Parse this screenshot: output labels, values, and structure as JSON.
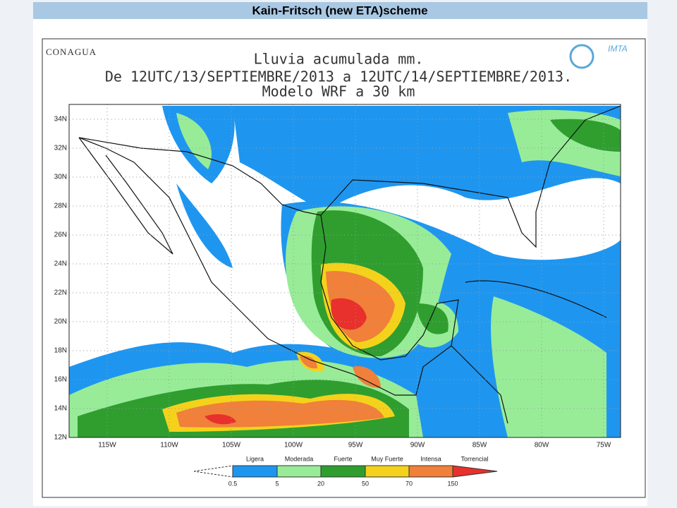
{
  "header": {
    "title": "Kain-Fritsch (new ETA)scheme"
  },
  "logos": {
    "left": "CONAGUA",
    "right": "IMTA"
  },
  "map": {
    "title": [
      "Lluvia acumulada mm.",
      "De 12UTC/13/SEPTIEMBRE/2013 a 12UTC/14/SEPTIEMBRE/2013.",
      "Modelo WRF a 30 km"
    ],
    "lat_labels": [
      "34N",
      "32N",
      "30N",
      "28N",
      "26N",
      "24N",
      "22N",
      "20N",
      "18N",
      "16N",
      "14N",
      "12N"
    ],
    "lon_labels": [
      "115W",
      "110W",
      "105W",
      "100W",
      "95W",
      "90W",
      "85W",
      "80W",
      "75W"
    ]
  },
  "legend": {
    "categories": [
      "Ligera",
      "Moderada",
      "Fuerte",
      "Muy Fuerte",
      "Intensa",
      "Torrencial"
    ],
    "thresholds": [
      0.5,
      5,
      20,
      50,
      70,
      150
    ]
  }
}
